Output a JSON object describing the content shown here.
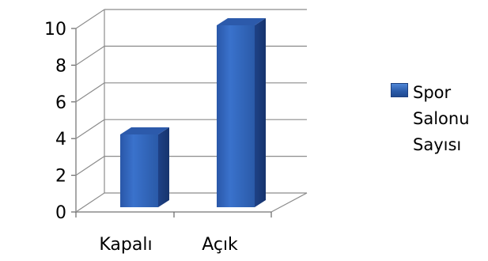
{
  "chart_data": {
    "type": "bar",
    "style": "3d-column",
    "categories": [
      "Kapalı",
      "Açık"
    ],
    "series": [
      {
        "name": "Spor Salonu Sayısı",
        "values": [
          4,
          10
        ],
        "color": "#2f62b5"
      }
    ],
    "ylim": [
      0,
      10
    ],
    "yticks": [
      0,
      2,
      4,
      6,
      8,
      10
    ],
    "grid": true,
    "legend_position": "right"
  },
  "legend": {
    "label": "Spor\nSalonu\nSayısı"
  }
}
